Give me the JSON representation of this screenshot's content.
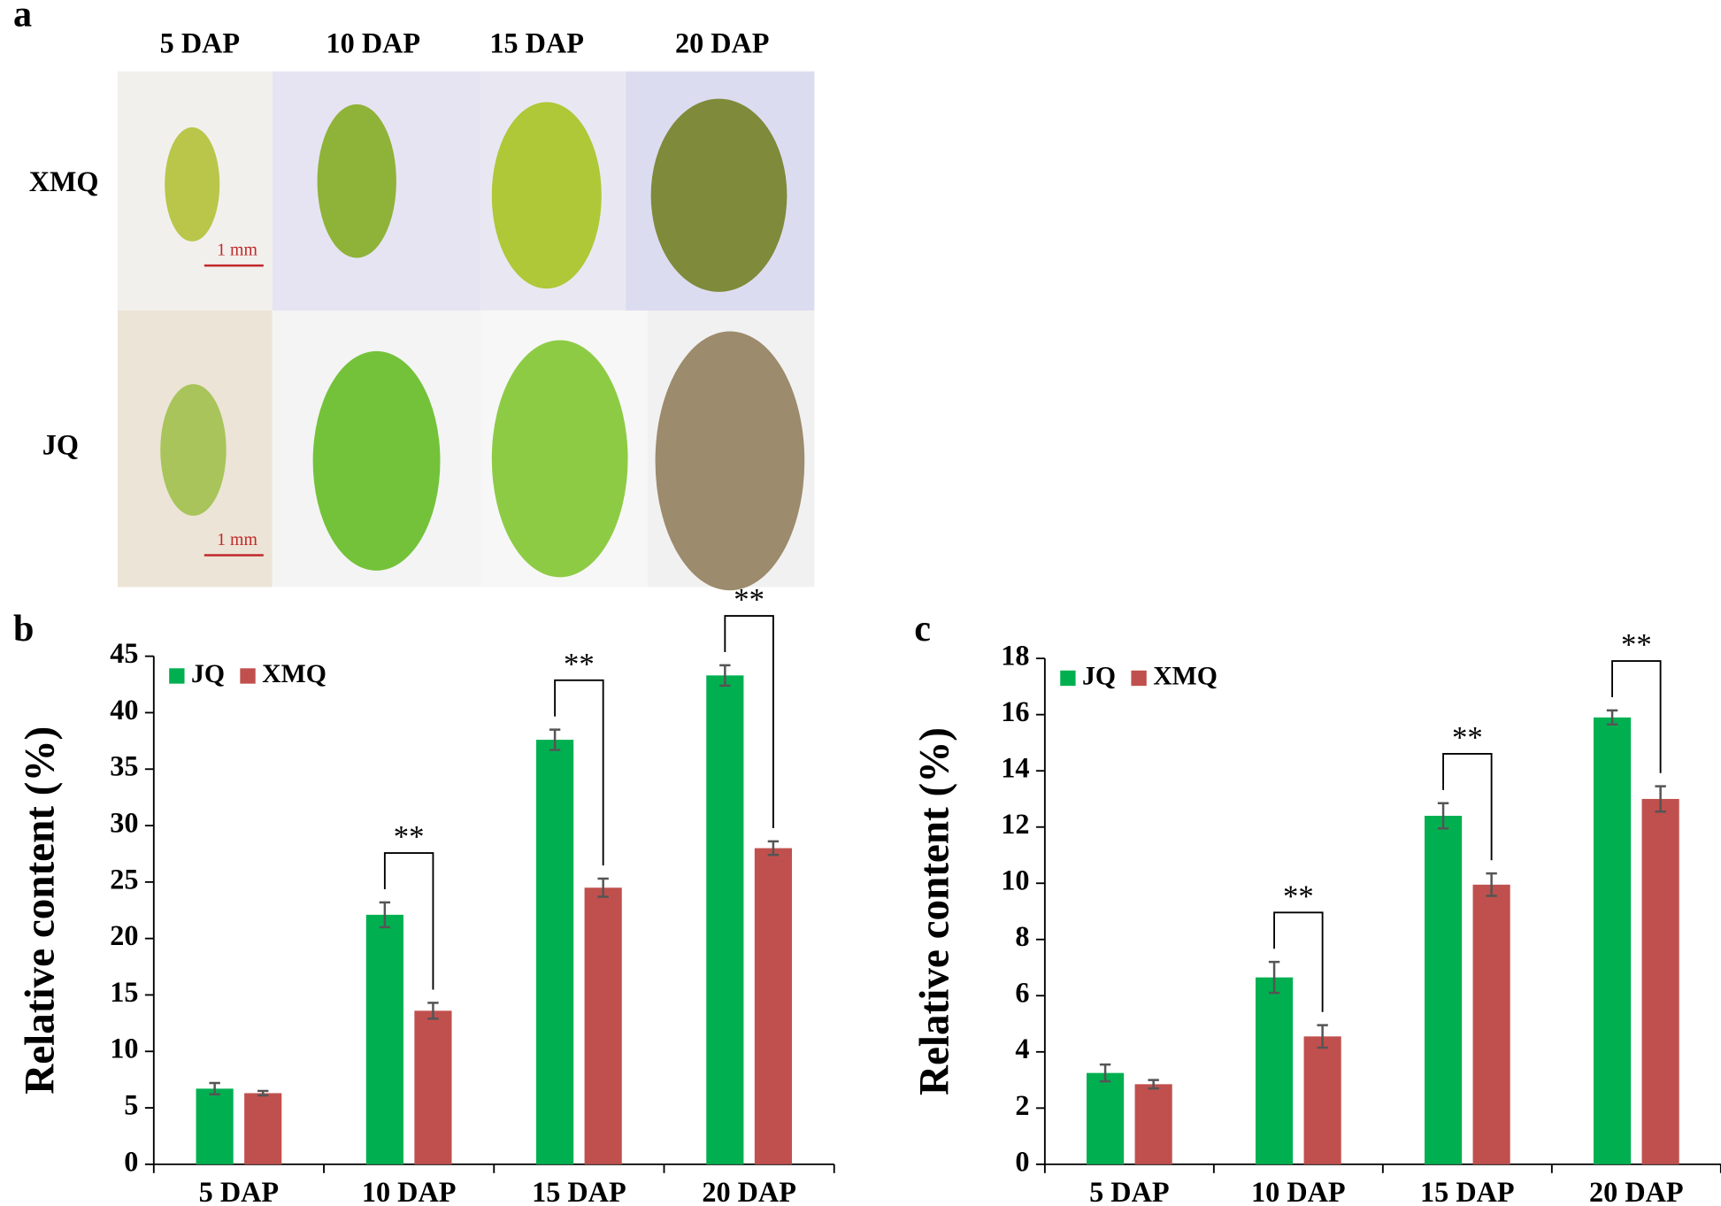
{
  "panel_a": {
    "label": "a",
    "columns": [
      "5 DAP",
      "10 DAP",
      "15 DAP",
      "20 DAP"
    ],
    "rows": [
      "XMQ",
      "JQ"
    ],
    "scale_bars": [
      "1 mm",
      "1 mm"
    ]
  },
  "chart_data": [
    {
      "type": "bar",
      "panel_label": "b",
      "ylabel": "Relative  content (%)",
      "categories": [
        "5 DAP",
        "10 DAP",
        "15 DAP",
        "20 DAP"
      ],
      "series": [
        {
          "name": "JQ",
          "color": "#00b050",
          "values": [
            6.7,
            22.1,
            37.6,
            43.3
          ],
          "errors": [
            0.5,
            1.1,
            0.9,
            0.9
          ]
        },
        {
          "name": "XMQ",
          "color": "#c0504d",
          "values": [
            6.3,
            13.6,
            24.5,
            28.0
          ],
          "errors": [
            0.2,
            0.7,
            0.8,
            0.6
          ]
        }
      ],
      "significance": [
        null,
        "**",
        "**",
        "**"
      ],
      "ylim": [
        0,
        45
      ],
      "yticks": [
        0,
        5,
        10,
        15,
        20,
        25,
        30,
        35,
        40,
        45
      ],
      "legend": "upper left"
    },
    {
      "type": "bar",
      "panel_label": "c",
      "ylabel": "Relative  content (%)",
      "categories": [
        "5 DAP",
        "10 DAP",
        "15 DAP",
        "20 DAP"
      ],
      "series": [
        {
          "name": "JQ",
          "color": "#00b050",
          "values": [
            3.25,
            6.65,
            12.4,
            15.9
          ],
          "errors": [
            0.3,
            0.55,
            0.45,
            0.25
          ]
        },
        {
          "name": "XMQ",
          "color": "#c0504d",
          "values": [
            2.85,
            4.55,
            9.95,
            13.0
          ],
          "errors": [
            0.15,
            0.4,
            0.4,
            0.45
          ]
        }
      ],
      "significance": [
        null,
        "**",
        "**",
        "**"
      ],
      "ylim": [
        0,
        18
      ],
      "yticks": [
        0,
        2,
        4,
        6,
        8,
        10,
        12,
        14,
        16,
        18
      ],
      "legend": "upper left"
    }
  ]
}
